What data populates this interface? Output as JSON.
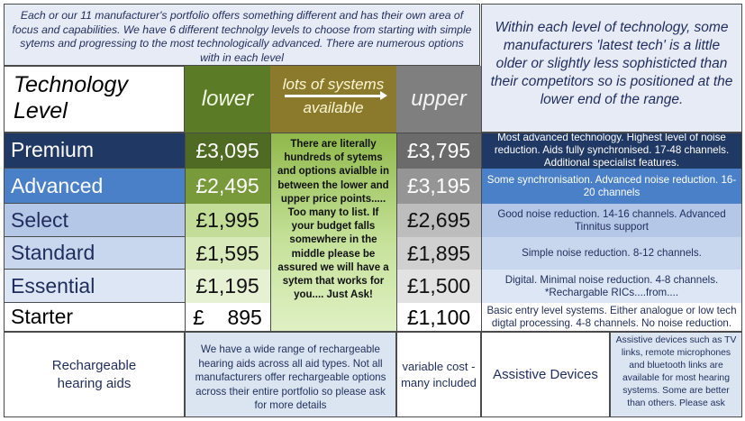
{
  "intro_left": "Each or our 11 manufacturer's portfolio offers something different and has their own area of focus and capabilities.   We have 6 different technolgy levels to choose from starting with simple sytems and progressing to the most technologically advanced. There are numerous options with in each level",
  "intro_right": "Within each level of technology, some manufacturers 'latest tech' is a little older or slightly less sophisticted than their competitors so is positioned at the lower end of the range.",
  "header": {
    "tech_level": "Technology Level",
    "lower": "lower",
    "middle_top": "lots of systems",
    "middle_bottom": "available",
    "upper": "upper"
  },
  "middle_text": "There are literally hundreds of sytems and options avialble in between the lower and upper price points..... Too many to list. If your budget falls somewhere in the middle please be assured we will have a sytem that works for you.... Just Ask!",
  "levels": [
    {
      "name": "Premium",
      "lower": "£3,095",
      "upper": "£3,795",
      "desc": "Most advanced technology. Highest level of noise reduction. Aids fully synchronised. 17-48 channels. Additional specialist features."
    },
    {
      "name": "Advanced",
      "lower": "£2,495",
      "upper": "£3,195",
      "desc": "Some synchronisation. Advanced noise reduction. 16-20 channels"
    },
    {
      "name": "Select",
      "lower": "£1,995",
      "upper": "£2,695",
      "desc": "Good noise reduction. 14-16 channels. Advanced Tinnitus support"
    },
    {
      "name": "Standard",
      "lower": "£1,595",
      "upper": "£1,895",
      "desc": "Simple noise reduction. 8-12 channels."
    },
    {
      "name": "Essential",
      "lower": "£1,195",
      "upper": "£1,500",
      "desc": "Digital. Minimal noise reduction. 4-8 channels. *Rechargable RICs....from...."
    },
    {
      "name": "Starter",
      "lower": "£    895",
      "upper": "£1,100",
      "desc": "Basic entry level systems. Either analogue or low tech digtal processing. 4-8 channels. No noise reduction."
    }
  ],
  "bottom": {
    "recharge_title": "Rechargeable hearing aids",
    "recharge_desc": "We have a wide range of rechargeable hearing aids across all aid types. Not all manufacturers offer rechargeable options across their entire portfolio so please ask for more details",
    "variable": "variable cost - many included",
    "assistive_title": "Assistive Devices",
    "assistive_desc": "Assistive devices such as TV links, remote microphones and bluetooth links are available for most hearing systems.  Some are better than others. Please ask"
  },
  "colors": {
    "premium": "#1f3864",
    "advanced": "#4a80c8",
    "select": "#b4c7e7",
    "standard": "#c9d7ee",
    "essential": "#dce6f4",
    "starter": "#ffffff"
  }
}
